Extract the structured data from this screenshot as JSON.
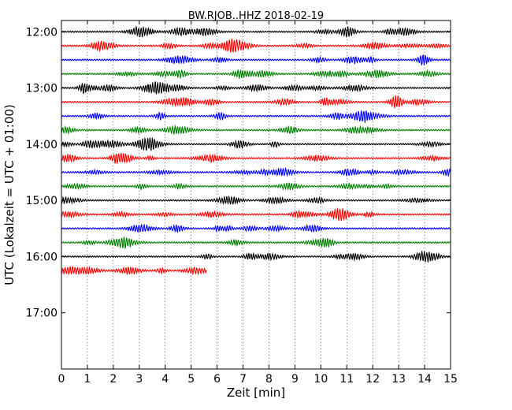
{
  "chart_data": {
    "type": "line",
    "title": "BW.RJOB..HHZ 2018-02-19",
    "xlabel": "Zeit  [min]",
    "ylabel": "UTC (Lokalzeit = UTC + 01:00)",
    "xlim": [
      0,
      15
    ],
    "x_ticks": [
      "0",
      "1",
      "2",
      "3",
      "4",
      "5",
      "6",
      "7",
      "8",
      "9",
      "10",
      "11",
      "12",
      "13",
      "14",
      "15"
    ],
    "y_ticks": [
      "12:00",
      "13:00",
      "14:00",
      "15:00",
      "16:00",
      "17:00"
    ],
    "y_range_hours": [
      11.8,
      18.0
    ],
    "grid": "vertical dotted",
    "trace_colors": [
      "#000000",
      "#ff0000",
      "#0000ff",
      "#008000"
    ],
    "trace_interval_minutes": 15,
    "traces": [
      {
        "start": "12:00",
        "end_min": 15
      },
      {
        "start": "12:15",
        "end_min": 15
      },
      {
        "start": "12:30",
        "end_min": 15
      },
      {
        "start": "12:45",
        "end_min": 15
      },
      {
        "start": "13:00",
        "end_min": 15
      },
      {
        "start": "13:15",
        "end_min": 15
      },
      {
        "start": "13:30",
        "end_min": 15
      },
      {
        "start": "13:45",
        "end_min": 15
      },
      {
        "start": "14:00",
        "end_min": 15
      },
      {
        "start": "14:15",
        "end_min": 15
      },
      {
        "start": "14:30",
        "end_min": 15
      },
      {
        "start": "14:45",
        "end_min": 15
      },
      {
        "start": "15:00",
        "end_min": 15
      },
      {
        "start": "15:15",
        "end_min": 15
      },
      {
        "start": "15:30",
        "end_min": 15
      },
      {
        "start": "15:45",
        "end_min": 15
      },
      {
        "start": "16:00",
        "end_min": 15
      },
      {
        "start": "16:15",
        "end_min": 5.6
      }
    ]
  }
}
